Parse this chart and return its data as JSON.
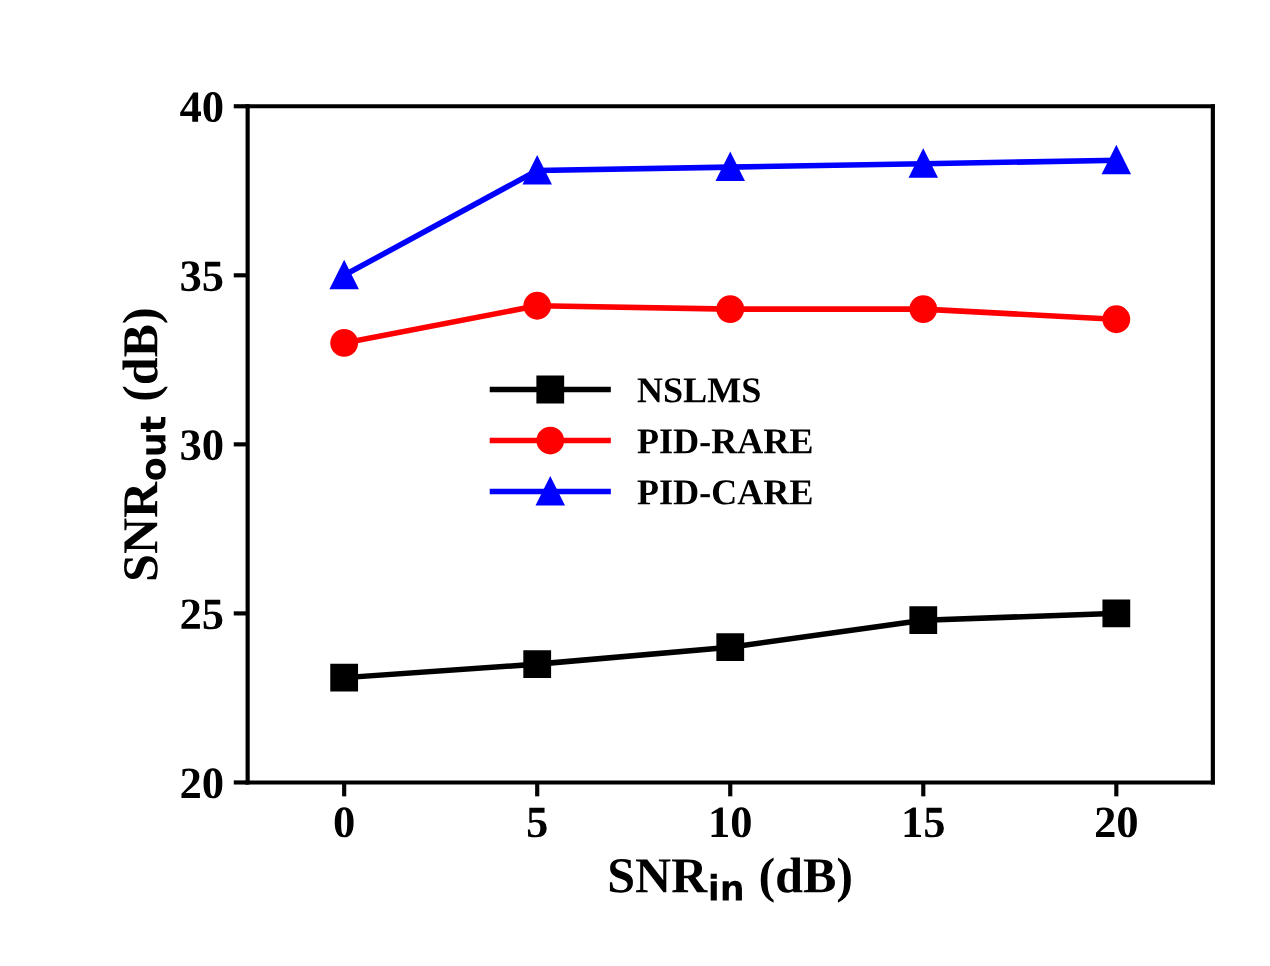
{
  "chart_data": {
    "type": "line",
    "xlabel": "SNR$_{in}$ (dB)",
    "ylabel": "SNR$_{out}$ (dB)",
    "x": [
      0,
      5,
      10,
      15,
      20
    ],
    "xlim": [
      -2.5,
      22.5
    ],
    "xticks": [
      0,
      5,
      10,
      15,
      20
    ],
    "ylim": [
      20,
      40
    ],
    "yticks": [
      20,
      25,
      30,
      35,
      40
    ],
    "series": [
      {
        "name": "NSLMS",
        "color": "#000000",
        "marker": "square",
        "values": [
          23.1,
          23.5,
          24.0,
          24.8,
          25.0
        ]
      },
      {
        "name": "PID-RARE",
        "color": "#ff0000",
        "marker": "circle",
        "values": [
          33.0,
          34.1,
          34.0,
          34.0,
          33.7
        ]
      },
      {
        "name": "PID-CARE",
        "color": "#0000ff",
        "marker": "triangle",
        "values": [
          35.0,
          38.1,
          38.2,
          38.3,
          38.4
        ]
      }
    ],
    "legend": "center left",
    "grid": false,
    "line_style": "solid"
  }
}
